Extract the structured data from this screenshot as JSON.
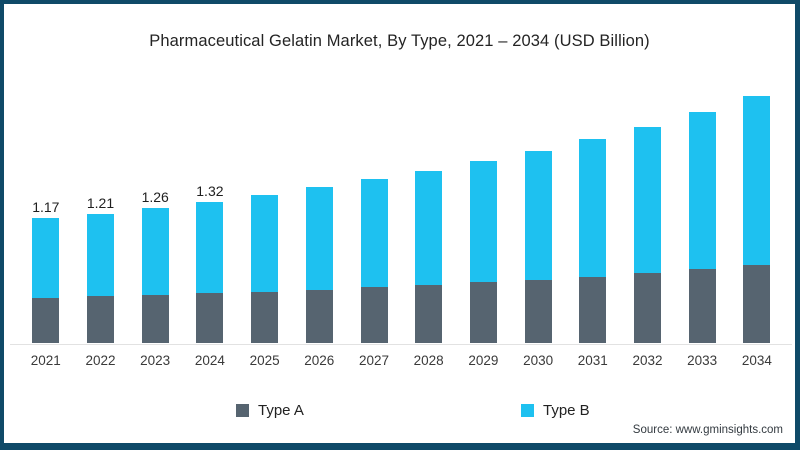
{
  "header": {
    "title": "Pharmaceutical Gelatin Market, By Type, 2021 – 2034 (USD Billion)"
  },
  "legend": {
    "items": [
      {
        "label": "Type A",
        "color": "#566470"
      },
      {
        "label": "Type B",
        "color": "#1ec1f0"
      }
    ]
  },
  "source": {
    "label": "Source: www.gminsights.com"
  },
  "colors": {
    "type_a": "#566470",
    "type_b": "#1ec1f0",
    "frame_border": "#0f4a68",
    "axis_line": "#e2e2e2"
  },
  "chart_data": {
    "type": "bar",
    "stacked": true,
    "title": "Pharmaceutical Gelatin Market, By Type, 2021 – 2034 (USD Billion)",
    "xlabel": "",
    "ylabel": "USD Billion",
    "ylim": [
      0,
      2.4
    ],
    "grid": false,
    "legend_position": "bottom",
    "categories": [
      "2021",
      "2022",
      "2023",
      "2024",
      "2025",
      "2026",
      "2027",
      "2028",
      "2029",
      "2030",
      "2031",
      "2032",
      "2033",
      "2034"
    ],
    "series": [
      {
        "name": "Type A",
        "color": "#566470",
        "values": [
          0.42,
          0.44,
          0.45,
          0.47,
          0.48,
          0.5,
          0.52,
          0.54,
          0.57,
          0.59,
          0.62,
          0.66,
          0.69,
          0.73
        ]
      },
      {
        "name": "Type B",
        "color": "#1ec1f0",
        "values": [
          0.75,
          0.77,
          0.81,
          0.85,
          0.91,
          0.96,
          1.01,
          1.07,
          1.13,
          1.21,
          1.29,
          1.37,
          1.47,
          1.58
        ]
      }
    ],
    "totals": [
      1.17,
      1.21,
      1.26,
      1.32,
      1.39,
      1.46,
      1.53,
      1.61,
      1.7,
      1.8,
      1.91,
      2.03,
      2.16,
      2.31
    ],
    "data_labels": [
      "1.17",
      "1.21",
      "1.26",
      "1.32",
      "",
      "",
      "",
      "",
      "",
      "",
      "",
      "",
      "",
      ""
    ]
  }
}
